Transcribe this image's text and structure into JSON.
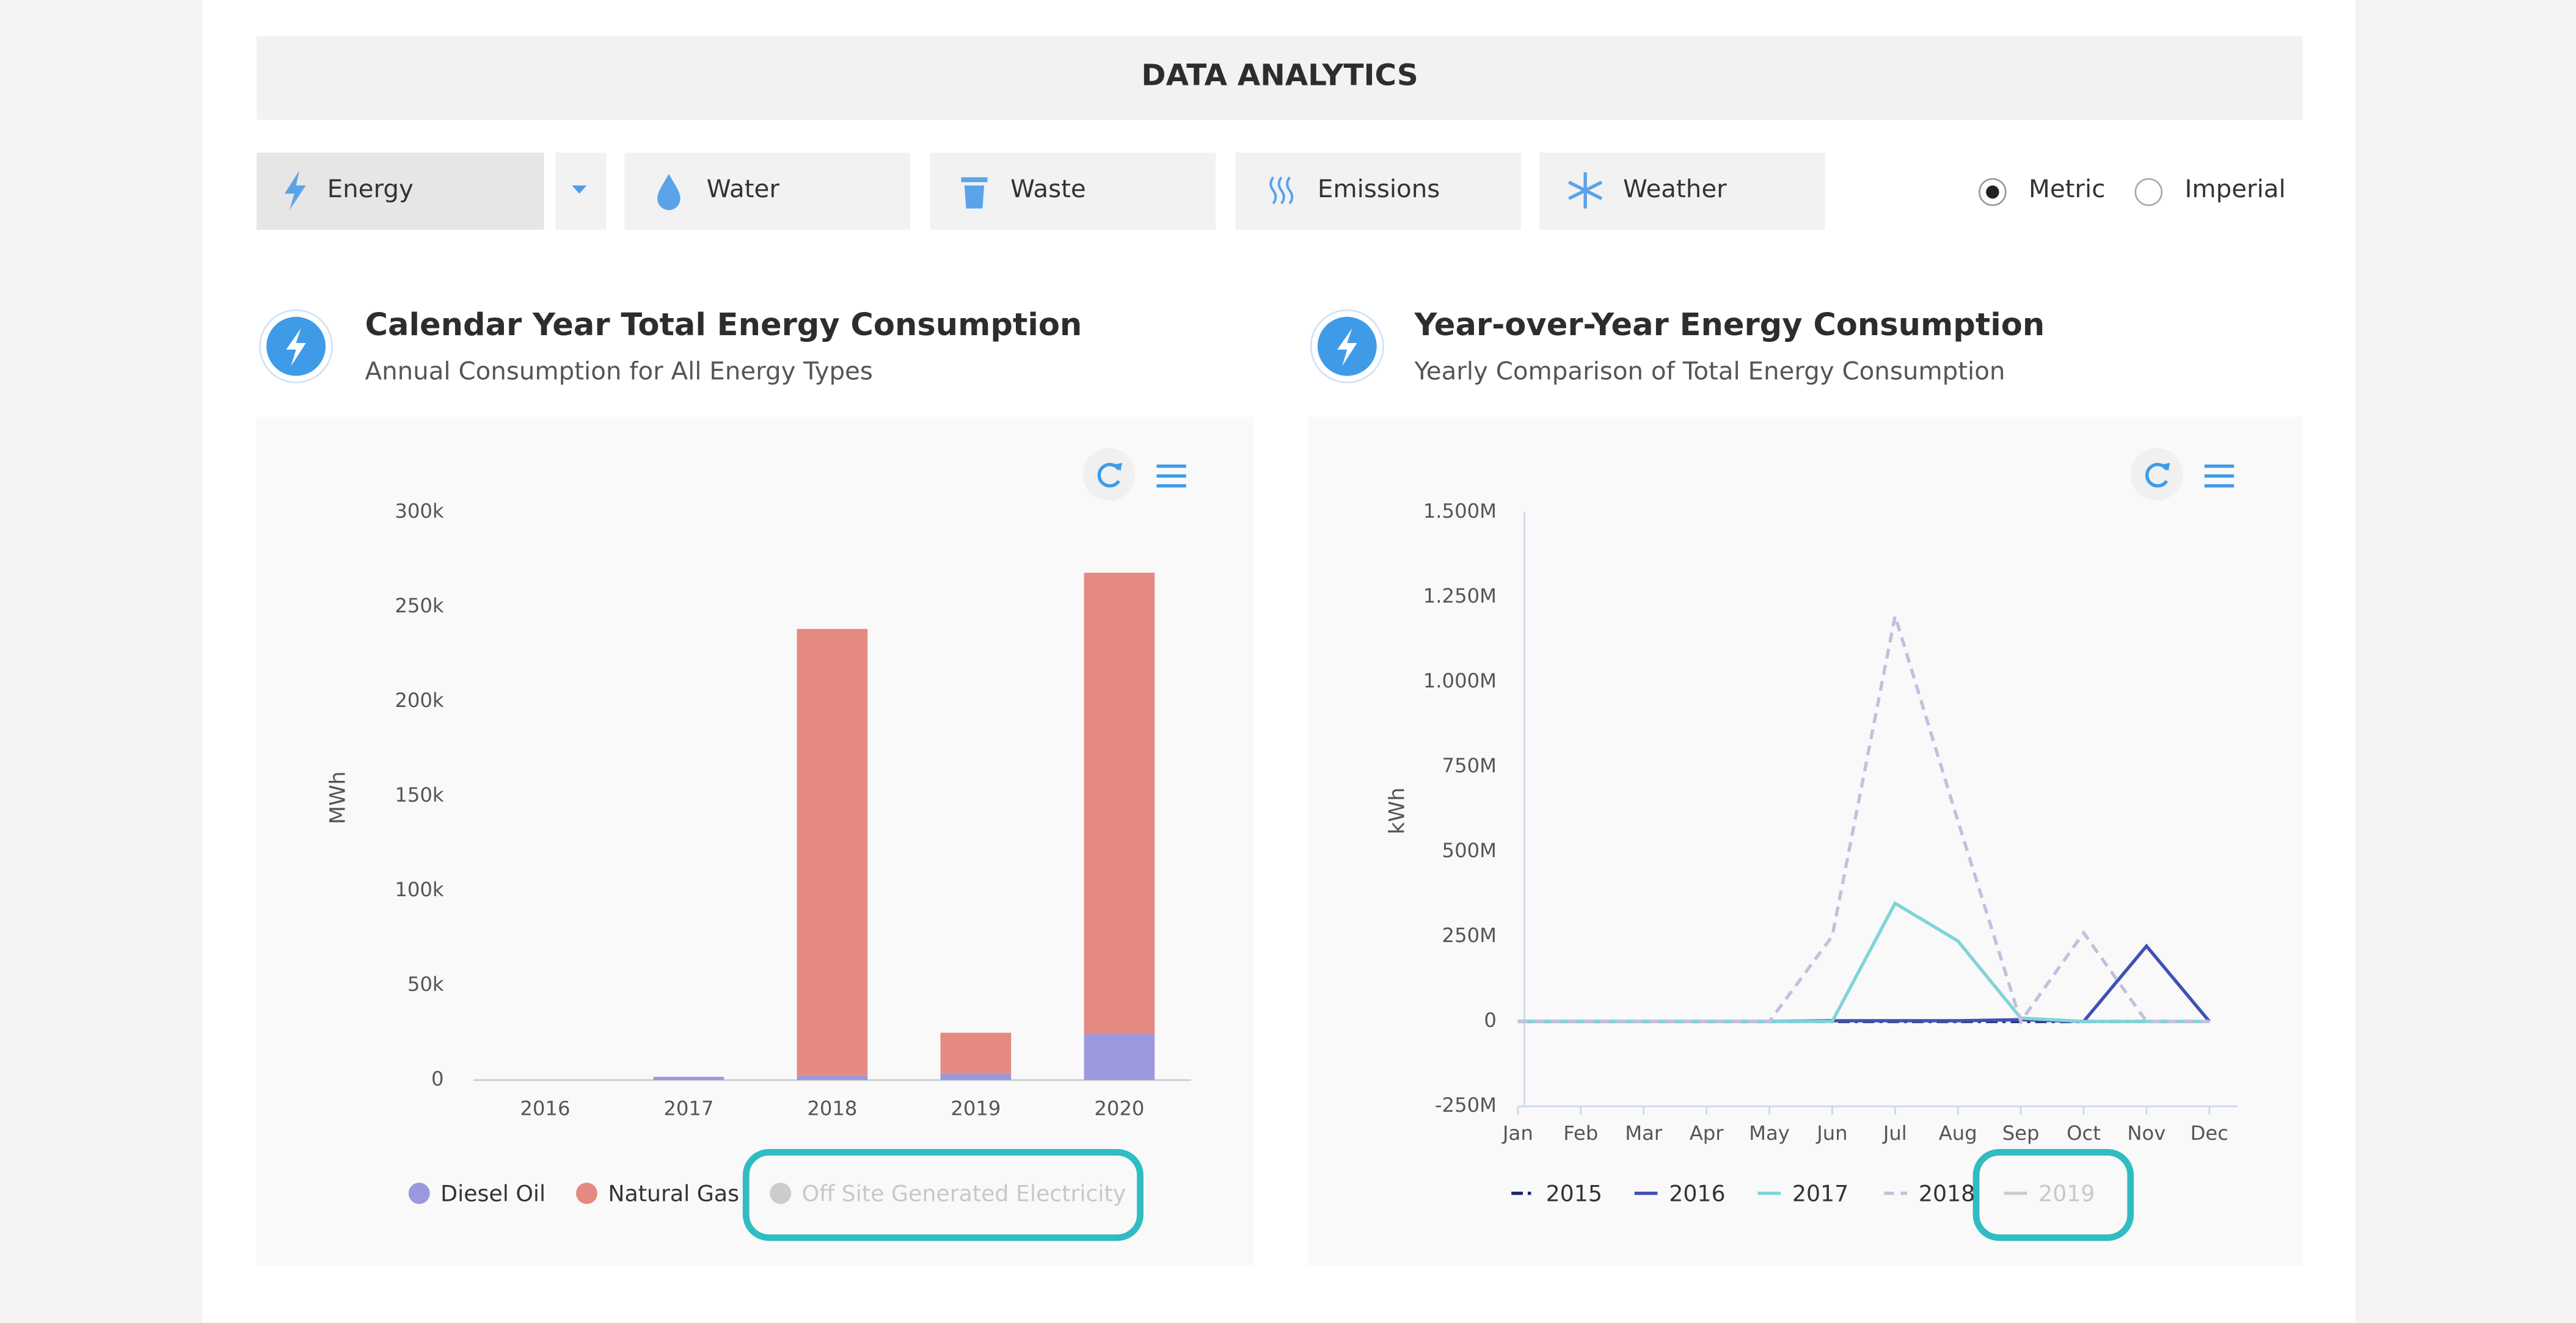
{
  "header": {
    "title": "DATA ANALYTICS"
  },
  "tabs": [
    "Energy",
    "Water",
    "Waste",
    "Emissions",
    "Weather"
  ],
  "units": [
    "Metric",
    "Imperial"
  ],
  "chart_data": [
    {
      "type": "bar",
      "stacked": true,
      "title": "Calendar Year Total Energy Consumption",
      "subtitle": "Annual Consumption for All Energy Types",
      "y_label": "MWh",
      "categories": [
        "2016",
        "2017",
        "2018",
        "2019",
        "2020"
      ],
      "series": [
        {
          "name": "Diesel Oil",
          "color": "#9b99dc",
          "visible": true,
          "values": [
            0,
            1700,
            2500,
            3300,
            24400
          ]
        },
        {
          "name": "Natural Gas",
          "color": "#e58a80",
          "visible": true,
          "values": [
            0,
            0,
            235800,
            21700,
            243600
          ]
        },
        {
          "name": "Off Site Generated Electricity",
          "color": "#cccccc",
          "visible": false,
          "values": [
            null,
            null,
            null,
            null,
            null
          ]
        }
      ],
      "ylim": [
        0,
        300000
      ],
      "yticks": [
        0,
        {
          "value": 50000,
          "label": "50k"
        },
        {
          "value": 100000,
          "label": "100k"
        },
        {
          "value": 150000,
          "label": "150k"
        },
        {
          "value": 200000,
          "label": "200k"
        },
        {
          "value": 250000,
          "label": "250k"
        },
        {
          "value": 300000,
          "label": "300k"
        }
      ],
      "grid": false
    },
    {
      "type": "line",
      "title": "Year-over-Year Energy Consumption",
      "subtitle": "Yearly Comparison of Total Energy Consumption",
      "y_label": "kWh",
      "categories": [
        "Jan",
        "Feb",
        "Mar",
        "Apr",
        "May",
        "Jun",
        "Jul",
        "Aug",
        "Sep",
        "Oct",
        "Nov",
        "Dec"
      ],
      "series": [
        {
          "name": "2015",
          "color": "#1c2a6b",
          "dash": "dashdot",
          "visible": true,
          "values": [
            0,
            0,
            0,
            0,
            0,
            0,
            0,
            0,
            0,
            0,
            0,
            0
          ]
        },
        {
          "name": "2016",
          "color": "#3f51b5",
          "dash": "solid",
          "visible": true,
          "values": [
            0,
            0,
            0,
            0,
            0,
            2000,
            2000,
            2000,
            5000,
            0,
            222000,
            0
          ]
        },
        {
          "name": "2017",
          "color": "#80d4d8",
          "dash": "solid",
          "visible": true,
          "values": [
            0,
            0,
            0,
            0,
            0,
            0,
            348000,
            237000,
            10000,
            0,
            0,
            0
          ]
        },
        {
          "name": "2018",
          "color": "#c3c0de",
          "dash": "dash",
          "visible": true,
          "values": [
            0,
            0,
            0,
            0,
            0,
            251000,
            1194000,
            590000,
            0,
            261000,
            0,
            0
          ]
        },
        {
          "name": "2019",
          "color": "#cccccc",
          "dash": "solid",
          "visible": false,
          "values": [
            null,
            null,
            null,
            null,
            null,
            null,
            null,
            null,
            null,
            null,
            null,
            null
          ]
        }
      ],
      "ylim": [
        -250000,
        1500000
      ],
      "yticks": [
        {
          "value": -250000,
          "label": "-250M"
        },
        0,
        {
          "value": 250000,
          "label": "250M"
        },
        {
          "value": 500000,
          "label": "500M"
        },
        {
          "value": 750000,
          "label": "750M"
        },
        {
          "value": 1000000,
          "label": "1.000M"
        },
        {
          "value": 1250000,
          "label": "1.250M"
        },
        {
          "value": 1500000,
          "label": "1.500M"
        }
      ],
      "grid": false
    }
  ]
}
